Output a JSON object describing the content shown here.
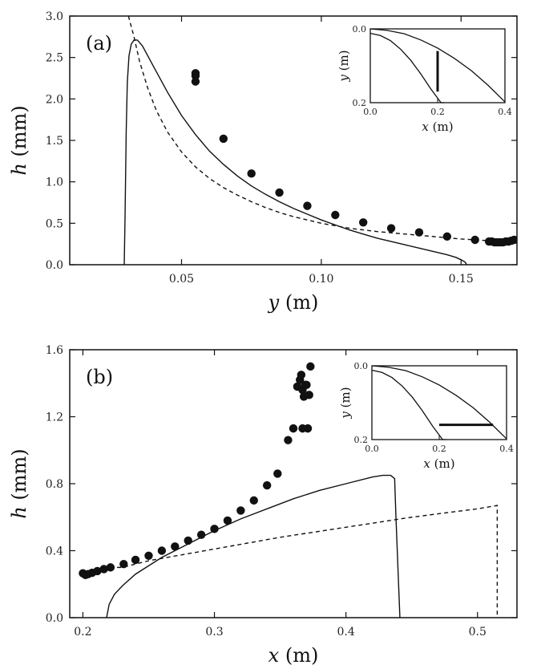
{
  "chart_data": [
    {
      "type": "scatter",
      "panel_label": "(a)",
      "xlabel_var": "y",
      "xlabel_unit": " (m)",
      "ylabel_var": "h",
      "ylabel_unit": " (mm)",
      "xlim": [
        0.01,
        0.17
      ],
      "ylim": [
        0,
        3.0
      ],
      "xticks": [
        0.05,
        0.1,
        0.15
      ],
      "xtick_labels": [
        "0.05",
        "0.10",
        "0.15"
      ],
      "yticks": [
        0,
        0.5,
        1.0,
        1.5,
        2.0,
        2.5,
        3.0
      ],
      "ytick_labels": [
        "0.0",
        "0.5",
        "1.0",
        "1.5",
        "2.0",
        "2.5",
        "3.0"
      ],
      "series": [
        {
          "style": "markers",
          "x": [
            0.055,
            0.055,
            0.055,
            0.065,
            0.075,
            0.085,
            0.095,
            0.105,
            0.115,
            0.125,
            0.135,
            0.145,
            0.155,
            0.16,
            0.161,
            0.162,
            0.163,
            0.164,
            0.165,
            0.166,
            0.167,
            0.168,
            0.169
          ],
          "y": [
            2.31,
            2.28,
            2.21,
            1.52,
            1.1,
            0.87,
            0.71,
            0.6,
            0.51,
            0.44,
            0.39,
            0.34,
            0.3,
            0.28,
            0.28,
            0.27,
            0.27,
            0.27,
            0.27,
            0.28,
            0.28,
            0.29,
            0.3
          ]
        },
        {
          "style": "solid",
          "x": [
            0.0295,
            0.0298,
            0.0302,
            0.0306,
            0.0312,
            0.032,
            0.033,
            0.0342,
            0.036,
            0.04,
            0.045,
            0.05,
            0.055,
            0.06,
            0.065,
            0.07,
            0.075,
            0.08,
            0.085,
            0.09,
            0.095,
            0.1,
            0.105,
            0.11,
            0.115,
            0.12,
            0.125,
            0.13,
            0.135,
            0.14,
            0.145,
            0.148,
            0.15,
            0.1515,
            0.152
          ],
          "y": [
            0,
            0.6,
            1.6,
            2.2,
            2.52,
            2.66,
            2.71,
            2.71,
            2.64,
            2.39,
            2.08,
            1.8,
            1.57,
            1.37,
            1.21,
            1.07,
            0.95,
            0.85,
            0.76,
            0.68,
            0.61,
            0.54,
            0.48,
            0.42,
            0.37,
            0.32,
            0.28,
            0.24,
            0.2,
            0.16,
            0.12,
            0.09,
            0.06,
            0.03,
            0
          ]
        },
        {
          "style": "dashed",
          "x": [
            0.031,
            0.033,
            0.035,
            0.038,
            0.041,
            0.045,
            0.05,
            0.055,
            0.06,
            0.065,
            0.07,
            0.075,
            0.08,
            0.085,
            0.09,
            0.095,
            0.1,
            0.11,
            0.12,
            0.13,
            0.14,
            0.15,
            0.16,
            0.17
          ],
          "y": [
            3.0,
            2.75,
            2.45,
            2.12,
            1.86,
            1.6,
            1.36,
            1.18,
            1.04,
            0.93,
            0.84,
            0.76,
            0.69,
            0.63,
            0.58,
            0.54,
            0.5,
            0.44,
            0.4,
            0.37,
            0.34,
            0.31,
            0.29,
            0.28
          ]
        }
      ],
      "inset": {
        "xlabel_var": "x",
        "xlabel_unit": " (m)",
        "ylabel_var": "y",
        "ylabel_unit": " (m)",
        "xlim": [
          0,
          0.4
        ],
        "ylim_inverted": [
          0,
          0.2
        ],
        "xtick_labels": [
          "0.0",
          "0.2",
          "0.4"
        ],
        "ytick_labels": [
          "0.0",
          "0.2"
        ],
        "outer_curve": {
          "x": [
            0,
            0.05,
            0.1,
            0.15,
            0.2,
            0.25,
            0.3,
            0.35,
            0.4
          ],
          "y": [
            0,
            0.004,
            0.013,
            0.03,
            0.052,
            0.08,
            0.113,
            0.153,
            0.198
          ]
        },
        "inner_curve": {
          "x": [
            0,
            0.03,
            0.06,
            0.09,
            0.12,
            0.15,
            0.18,
            0.21,
            0.22
          ],
          "y": [
            0.012,
            0.018,
            0.032,
            0.055,
            0.085,
            0.122,
            0.163,
            0.205,
            0.212
          ]
        },
        "marker_line": {
          "x1": 0.2,
          "y1": 0.06,
          "x2": 0.2,
          "y2": 0.17
        }
      }
    },
    {
      "type": "scatter",
      "panel_label": "(b)",
      "xlabel_var": "x",
      "xlabel_unit": " (m)",
      "ylabel_var": "h",
      "ylabel_unit": " (mm)",
      "xlim": [
        0.19,
        0.53
      ],
      "ylim": [
        0,
        1.6
      ],
      "xticks": [
        0.2,
        0.3,
        0.4,
        0.5
      ],
      "xtick_labels": [
        "0.2",
        "0.3",
        "0.4",
        "0.5"
      ],
      "yticks": [
        0,
        0.4,
        0.8,
        1.2,
        1.6
      ],
      "ytick_labels": [
        "0.0",
        "0.4",
        "0.8",
        "1.2",
        "1.6"
      ],
      "series": [
        {
          "style": "markers",
          "x": [
            0.2,
            0.202,
            0.204,
            0.207,
            0.211,
            0.216,
            0.221,
            0.231,
            0.24,
            0.25,
            0.26,
            0.27,
            0.28,
            0.29,
            0.3,
            0.31,
            0.32,
            0.33,
            0.34,
            0.348,
            0.356,
            0.36,
            0.363,
            0.365,
            0.366,
            0.367,
            0.368,
            0.37,
            0.372,
            0.371,
            0.369,
            0.367,
            0.373
          ],
          "y": [
            0.265,
            0.255,
            0.26,
            0.268,
            0.278,
            0.29,
            0.3,
            0.32,
            0.345,
            0.37,
            0.4,
            0.425,
            0.46,
            0.495,
            0.53,
            0.58,
            0.64,
            0.7,
            0.79,
            0.86,
            1.06,
            1.13,
            1.38,
            1.42,
            1.45,
            1.36,
            1.32,
            1.39,
            1.33,
            1.13,
            1.39,
            1.13,
            1.5
          ]
        },
        {
          "style": "solid",
          "x": [
            0.218,
            0.22,
            0.224,
            0.23,
            0.24,
            0.26,
            0.28,
            0.3,
            0.32,
            0.34,
            0.36,
            0.38,
            0.4,
            0.42,
            0.428,
            0.434,
            0.437,
            0.438,
            0.44,
            0.441
          ],
          "y": [
            0,
            0.08,
            0.14,
            0.19,
            0.26,
            0.36,
            0.44,
            0.52,
            0.59,
            0.65,
            0.71,
            0.76,
            0.8,
            0.84,
            0.85,
            0.85,
            0.83,
            0.6,
            0.2,
            0
          ]
        },
        {
          "style": "dashed",
          "x": [
            0.215,
            0.23,
            0.25,
            0.3,
            0.35,
            0.4,
            0.45,
            0.5,
            0.515,
            0.515
          ],
          "y": [
            0.3,
            0.3,
            0.34,
            0.41,
            0.48,
            0.54,
            0.6,
            0.65,
            0.67,
            0
          ]
        }
      ],
      "inset": {
        "xlabel_var": "x",
        "xlabel_unit": " (m)",
        "ylabel_var": "y",
        "ylabel_unit": " (m)",
        "xlim": [
          0,
          0.4
        ],
        "ylim_inverted": [
          0,
          0.2
        ],
        "xtick_labels": [
          "0.0",
          "0.2",
          "0.4"
        ],
        "ytick_labels": [
          "0.0",
          "0.2"
        ],
        "outer_curve": {
          "x": [
            0,
            0.05,
            0.1,
            0.15,
            0.2,
            0.25,
            0.3,
            0.35,
            0.4
          ],
          "y": [
            0,
            0.004,
            0.013,
            0.03,
            0.052,
            0.08,
            0.113,
            0.153,
            0.198
          ]
        },
        "inner_curve": {
          "x": [
            0,
            0.03,
            0.06,
            0.09,
            0.12,
            0.15,
            0.18,
            0.21,
            0.22
          ],
          "y": [
            0.012,
            0.018,
            0.032,
            0.055,
            0.085,
            0.122,
            0.163,
            0.205,
            0.212
          ]
        },
        "marker_line": {
          "x1": 0.2,
          "y1": 0.16,
          "x2": 0.36,
          "y2": 0.16
        }
      }
    }
  ]
}
